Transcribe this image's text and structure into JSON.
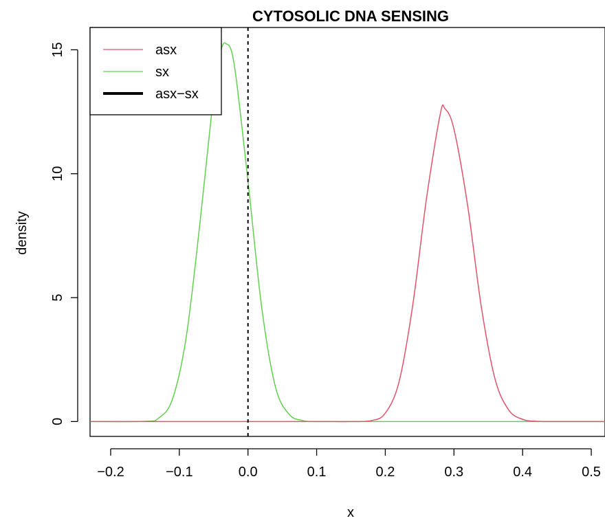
{
  "chart_data": {
    "type": "line",
    "title": "CYTOSOLIC DNA SENSING",
    "xlabel": "x",
    "ylabel": "density",
    "xlim": [
      -0.23,
      0.52
    ],
    "ylim": [
      -0.6,
      15.9
    ],
    "x_ticks": [
      -0.2,
      -0.1,
      0.0,
      0.1,
      0.2,
      0.3,
      0.4,
      0.5
    ],
    "x_tick_labels": [
      "−0.2",
      "−0.1",
      "0.0",
      "0.1",
      "0.2",
      "0.3",
      "0.4",
      "0.5"
    ],
    "y_ticks": [
      0,
      5,
      10,
      15
    ],
    "y_tick_labels": [
      "0",
      "5",
      "10",
      "15"
    ],
    "grid": false,
    "legend_position": "top-left",
    "reference_line": {
      "x": 0.0,
      "style": "dashed",
      "color": "#000000"
    },
    "series": [
      {
        "name": "asx",
        "color": "#DF536B",
        "peak_x": 0.287,
        "peak_y": 12.62,
        "x": [
          -0.23,
          -0.1,
          0.0,
          0.1,
          0.15,
          0.18,
          0.2,
          0.22,
          0.24,
          0.26,
          0.28,
          0.287,
          0.3,
          0.32,
          0.34,
          0.36,
          0.38,
          0.4,
          0.42,
          0.45,
          0.52
        ],
        "values": [
          0,
          0,
          0,
          0,
          0.0,
          0.04,
          0.34,
          1.6,
          4.7,
          9.0,
          12.4,
          12.62,
          11.8,
          8.7,
          4.6,
          1.7,
          0.46,
          0.09,
          0.01,
          0,
          0
        ]
      },
      {
        "name": "sx",
        "color": "#61D04F",
        "peak_x": -0.032,
        "peak_y": 15.25,
        "x": [
          -0.23,
          -0.15,
          -0.13,
          -0.11,
          -0.09,
          -0.07,
          -0.05,
          -0.04,
          -0.032,
          -0.02,
          0.0,
          0.02,
          0.04,
          0.06,
          0.08,
          0.1,
          0.2,
          0.52
        ],
        "values": [
          0,
          0.01,
          0.14,
          0.9,
          3.4,
          8.0,
          13.2,
          14.9,
          15.25,
          14.4,
          9.7,
          4.6,
          1.4,
          0.29,
          0.04,
          0,
          0,
          0
        ]
      },
      {
        "name": "asx−sx",
        "color": "#000000",
        "x": [],
        "values": []
      }
    ]
  }
}
